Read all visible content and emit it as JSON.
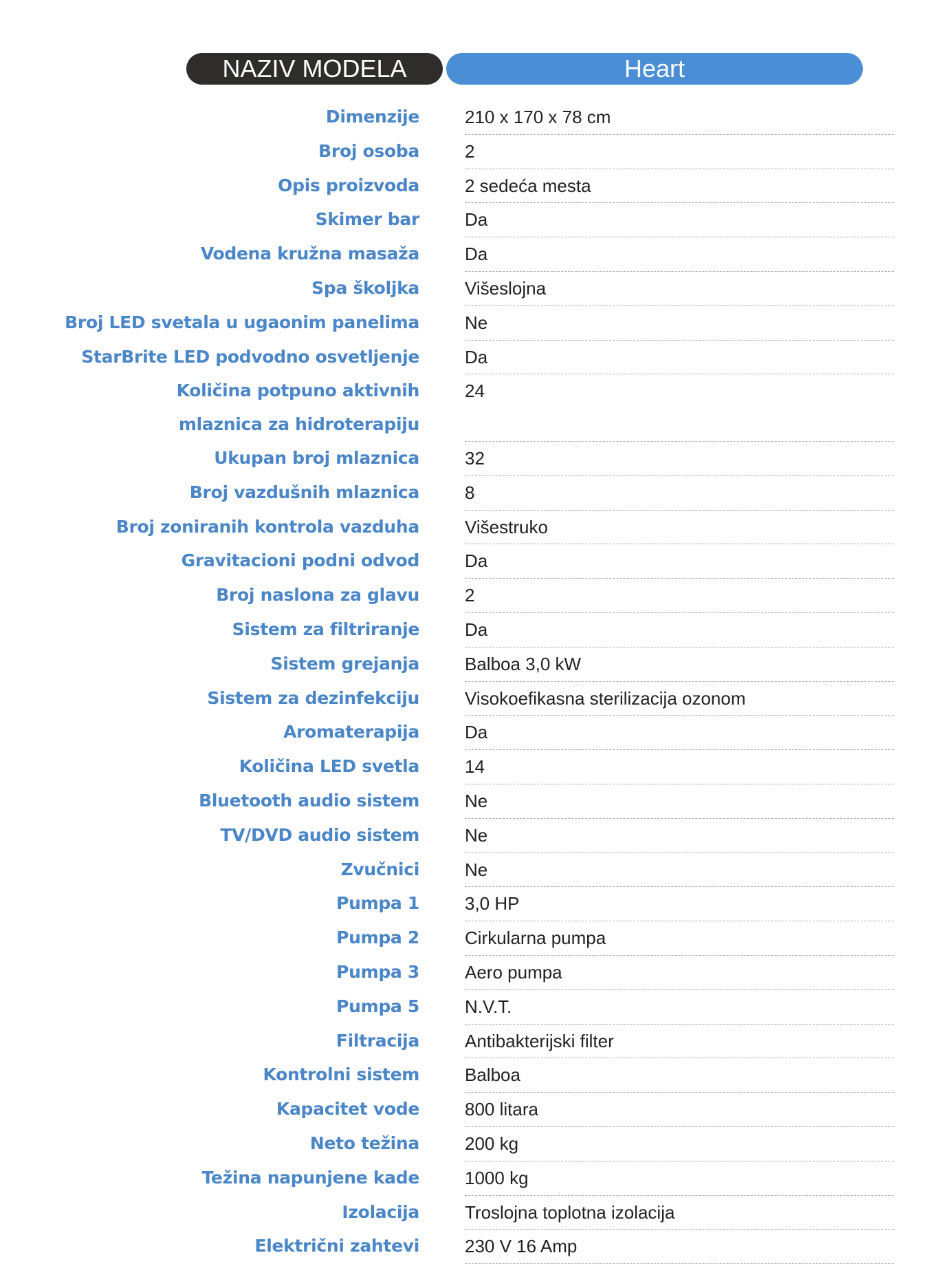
{
  "header": {
    "label": "NAZIV MODELA",
    "model": "Heart"
  },
  "colors": {
    "label": "#4a86c8",
    "header_dark": "#2f2d2c",
    "header_blue": "#4a8fd6"
  },
  "specs": [
    {
      "label": "Dimenzije",
      "value": "210 x 170 x 78 cm"
    },
    {
      "label": "Broj osoba",
      "value": "2"
    },
    {
      "label": "Opis proizvoda",
      "value": "2 sedeća mesta"
    },
    {
      "label": "Skimer bar",
      "value": "Da"
    },
    {
      "label": "Vodena kružna masaža",
      "value": "Da"
    },
    {
      "label": "Spa školjka",
      "value": "Višeslojna"
    },
    {
      "label": "Broj LED svetala u ugaonim panelima",
      "value": "Ne"
    },
    {
      "label": "StarBrite LED podvodno osvetljenje",
      "value": "Da"
    },
    {
      "label": "Količina potpuno aktivnih",
      "label2": "mlaznica za hidroterapiju",
      "value": "24"
    },
    {
      "label": "Ukupan broj mlaznica",
      "value": "32"
    },
    {
      "label": "Broj vazdušnih mlaznica",
      "value": "8"
    },
    {
      "label": "Broj zoniranih kontrola vazduha",
      "value": "Višestruko"
    },
    {
      "label": "Gravitacioni podni odvod",
      "value": "Da"
    },
    {
      "label": "Broj naslona za glavu",
      "value": "2"
    },
    {
      "label": "Sistem za filtriranje",
      "value": "Da"
    },
    {
      "label": "Sistem grejanja",
      "value": "Balboa 3,0 kW"
    },
    {
      "label": "Sistem za dezinfekciju",
      "value": "Visokoefikasna sterilizacija ozonom"
    },
    {
      "label": "Aromaterapija",
      "value": "Da"
    },
    {
      "label": "Količina LED svetla",
      "value": "14"
    },
    {
      "label": "Bluetooth audio sistem",
      "value": "Ne"
    },
    {
      "label": "TV/DVD audio sistem",
      "value": "Ne"
    },
    {
      "label": "Zvučnici",
      "value": "Ne"
    },
    {
      "label": "Pumpa 1",
      "value": "3,0 HP"
    },
    {
      "label": "Pumpa 2",
      "value": "Cirkularna pumpa"
    },
    {
      "label": "Pumpa 3",
      "value": "Aero pumpa"
    },
    {
      "label": "Pumpa 5",
      "value": "N.V.T."
    },
    {
      "label": "Filtracija",
      "value": "Antibakterijski filter"
    },
    {
      "label": "Kontrolni sistem",
      "value": "Balboa"
    },
    {
      "label": "Kapacitet vode",
      "value": "800 litara"
    },
    {
      "label": "Neto težina",
      "value": "200 kg"
    },
    {
      "label": "Težina napunjene kade",
      "value": "1000 kg"
    },
    {
      "label": "Izolacija",
      "value": "Troslojna toplotna izolacija"
    },
    {
      "label": "Električni zahtevi",
      "value": "230 V 16 Amp"
    }
  ]
}
